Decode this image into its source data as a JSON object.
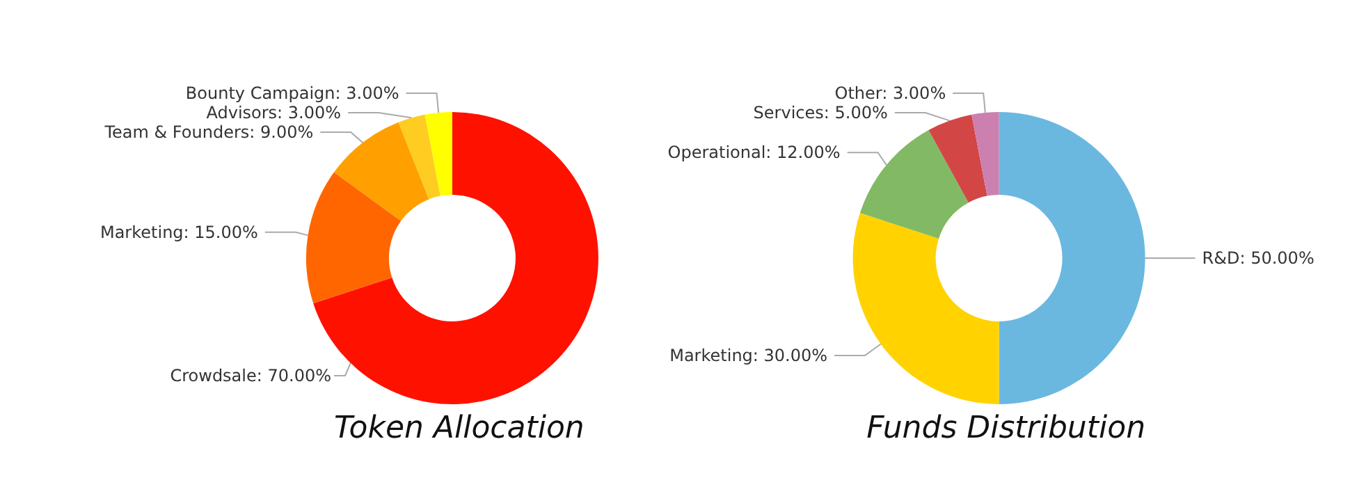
{
  "chart_data": [
    {
      "type": "donut",
      "title": "Token Allocation",
      "categories": [
        "Crowdsale",
        "Marketing",
        "Team & Founders",
        "Advisors",
        "Bounty Campaign"
      ],
      "values": [
        70,
        15,
        9,
        3,
        3
      ],
      "value_labels": [
        "70.00%",
        "15.00%",
        "9.00%",
        "3.00%",
        "3.00%"
      ],
      "colors": [
        "#ff1100",
        "#ff6600",
        "#ffa000",
        "#ffcc22",
        "#ffff00"
      ],
      "legend": false
    },
    {
      "type": "donut",
      "title": "Funds Distribution",
      "categories": [
        "R&D",
        "Marketing",
        "Operational",
        "Services",
        "Other"
      ],
      "values": [
        50,
        30,
        12,
        5,
        3
      ],
      "value_labels": [
        "50.00%",
        "30.00%",
        "12.00%",
        "5.00%",
        "3.00%"
      ],
      "colors": [
        "#6ab8e0",
        "#ffd200",
        "#82b964",
        "#d24646",
        "#cc80b0"
      ],
      "legend": false
    }
  ]
}
